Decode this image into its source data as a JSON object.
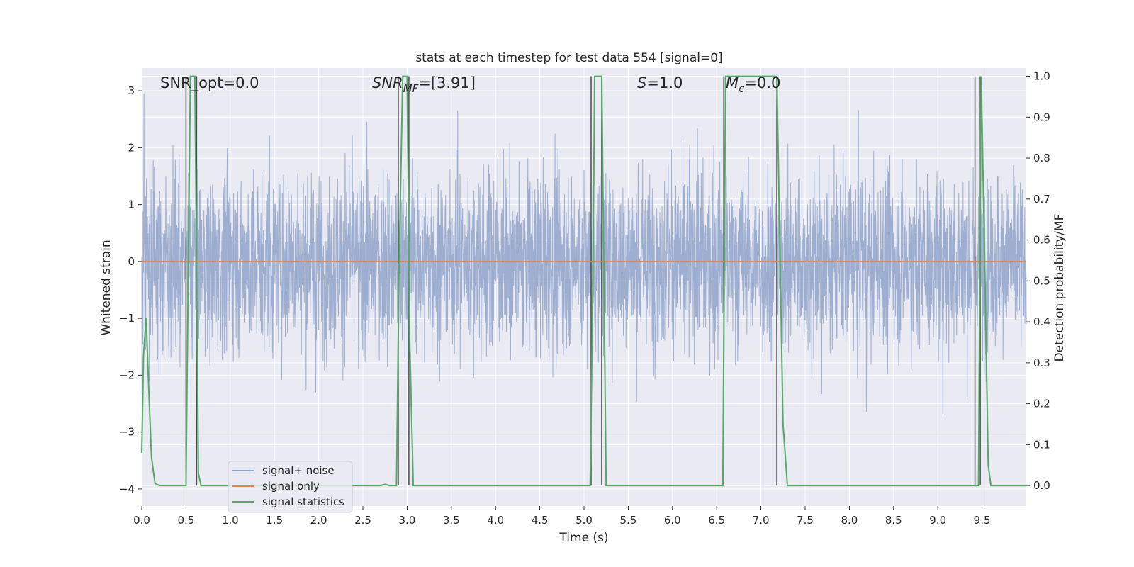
{
  "chart_data": {
    "type": "line",
    "title": "stats at each timestep for test data 554 [signal=0]",
    "xlabel": "Time (s)",
    "ylabel": "Whitened strain",
    "y2label": "Detection probability/MF",
    "xlim": [
      0,
      10
    ],
    "ylim": [
      -4.3,
      3.4
    ],
    "y2lim": [
      -0.05,
      1.02
    ],
    "xticks": [
      "0.0",
      "0.5",
      "1.0",
      "1.5",
      "2.0",
      "2.5",
      "3.0",
      "3.5",
      "4.0",
      "4.5",
      "5.0",
      "5.5",
      "6.0",
      "6.5",
      "7.0",
      "7.5",
      "8.0",
      "8.5",
      "9.0",
      "9.5"
    ],
    "yticks": [
      "3",
      "2",
      "1",
      "0",
      "−1",
      "−2",
      "−3",
      "−4"
    ],
    "y2ticks": [
      "1.0",
      "0.9",
      "0.8",
      "0.7",
      "0.6",
      "0.5",
      "0.4",
      "0.3",
      "0.2",
      "0.1",
      "0.0"
    ],
    "grid": true,
    "legend_position": "lower-left",
    "annotations": [
      {
        "text": "SNR_opt=0.0"
      },
      {
        "text": "SNR",
        "sub": "MF",
        "rest": "=[3.91]"
      },
      {
        "text": "S",
        "rest": "=1.0"
      },
      {
        "text": "M",
        "sub": "c",
        "rest": "=0.0"
      }
    ],
    "series": [
      {
        "name": "signal+ noise",
        "color": "#8fa3cb",
        "note": "dense whitened noise, roughly -2 to 2 with spikes to about ±3.5"
      },
      {
        "name": "signal only",
        "color": "#dd8452",
        "x": [
          0,
          10
        ],
        "y": [
          0,
          0
        ]
      },
      {
        "name": "signal statistics",
        "color": "#55a868",
        "axis": "right",
        "x": [
          0.0,
          0.02,
          0.05,
          0.08,
          0.11,
          0.15,
          0.2,
          0.25,
          0.5,
          0.51,
          0.53,
          0.55,
          0.6,
          0.62,
          0.64,
          0.67,
          0.75,
          1.0,
          2.0,
          2.6,
          2.7,
          2.75,
          2.8,
          2.88,
          2.91,
          2.95,
          3.0,
          3.03,
          3.07,
          3.1,
          4.0,
          5.0,
          5.07,
          5.1,
          5.12,
          5.15,
          5.2,
          5.25,
          5.3,
          6.0,
          6.57,
          6.6,
          6.65,
          7.0,
          7.18,
          7.25,
          7.3,
          8.0,
          9.0,
          9.42,
          9.46,
          9.49,
          9.53,
          9.57,
          9.6,
          10.0
        ],
        "y": [
          0.08,
          0.32,
          0.41,
          0.23,
          0.07,
          0.005,
          0.0,
          0.0,
          0.0,
          0.2,
          0.6,
          1.0,
          1.0,
          0.55,
          0.03,
          0.0,
          0.0,
          0.0,
          0.0,
          0.0,
          0.0,
          0.003,
          0.0,
          0.0,
          0.55,
          1.0,
          1.0,
          0.35,
          0.0,
          0.0,
          0.0,
          0.0,
          0.0,
          0.5,
          1.0,
          1.0,
          1.0,
          0.0,
          0.0,
          0.0,
          0.0,
          1.0,
          1.0,
          1.0,
          1.0,
          0.15,
          0.0,
          0.0,
          0.0,
          0.0,
          0.0,
          1.0,
          0.55,
          0.05,
          0.0,
          0.0
        ]
      }
    ],
    "event_markers_x": [
      0.5,
      0.62,
      2.9,
      3.02,
      5.08,
      5.2,
      6.58,
      7.18,
      9.42,
      9.48
    ]
  }
}
